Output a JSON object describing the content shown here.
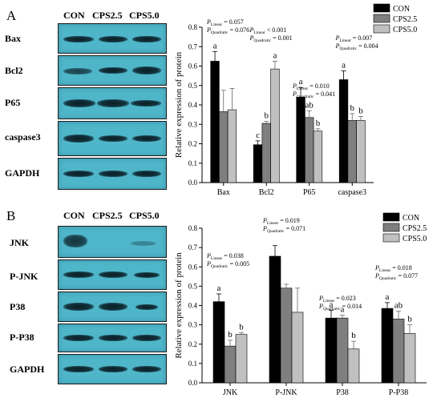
{
  "panels": [
    {
      "letter": "A",
      "blot": {
        "headers": [
          "CON",
          "CPS2.5",
          "CPS5.0"
        ],
        "labels": [
          "Bax",
          "Bcl2",
          "P65",
          "caspase3",
          "GAPDH"
        ]
      },
      "legend": [
        "CON",
        "CPS2.5",
        "CPS5.0"
      ],
      "stats": [
        {
          "pl": "P",
          "sl": "Linear",
          "vl": "= 0.057",
          "pq": "P",
          "sq": "Quadratic",
          "vq": "= 0.076"
        },
        {
          "pl": "P",
          "sl": "Linear",
          "vl": "< 0.001",
          "pq": "P",
          "sq": "Quadratic",
          "vq": "= 0.001"
        },
        {
          "pl": "P",
          "sl": "Linear",
          "vl": "= 0.010",
          "pq": "P",
          "sq": "Quadratic",
          "vq": "= 0.041"
        },
        {
          "pl": "P",
          "sl": "Linear",
          "vl": "= 0.007",
          "pq": "P",
          "sq": "Quadratic",
          "vq": "= 0.004"
        }
      ]
    },
    {
      "letter": "B",
      "blot": {
        "headers": [
          "CON",
          "CPS2.5",
          "CPS5.0"
        ],
        "labels": [
          "JNK",
          "P-JNK",
          "P38",
          "P-P38",
          "GAPDH"
        ]
      },
      "legend": [
        "CON",
        "CPS2.5",
        "CPS5.0"
      ],
      "stats": [
        {
          "pl": "P",
          "sl": "Linear",
          "vl": "= 0.038",
          "pq": "P",
          "sq": "Quadratic",
          "vq": "= 0.005"
        },
        {
          "pl": "P",
          "sl": "Linear",
          "vl": "= 0.019",
          "pq": "P",
          "sq": "Quadratic",
          "vq": "= 0.071"
        },
        {
          "pl": "P",
          "sl": "Linear",
          "vl": "= 0.023",
          "pq": "P",
          "sq": "Quadratic",
          "vq": "= 0.014"
        },
        {
          "pl": "P",
          "sl": "Linear",
          "vl": "= 0.018",
          "pq": "P",
          "sq": "Quadratic",
          "vq": "= 0.077"
        }
      ]
    }
  ],
  "colors": {
    "con": "#000000",
    "cps25": "#7f7f7f",
    "cps50": "#c0c0c0",
    "blot_bg": "#4fb6c9"
  },
  "chart_data": [
    {
      "type": "bar",
      "ylabel": "Relative expression of protein",
      "xlabel": "",
      "ylim": [
        0,
        0.8
      ],
      "yticks": [
        "0.0",
        "0.1",
        "0.2",
        "0.3",
        "0.4",
        "0.5",
        "0.6",
        "0.7",
        "0.8"
      ],
      "categories": [
        "Bax",
        "Bcl2",
        "P65",
        "caspase3"
      ],
      "grid": false,
      "legend_position": "top-right",
      "series": [
        {
          "name": "CON",
          "values": [
            0.625,
            0.195,
            0.44,
            0.53
          ],
          "errors": [
            0.05,
            0.02,
            0.05,
            0.045
          ],
          "letters": [
            "a",
            "c",
            "a",
            "a"
          ]
        },
        {
          "name": "CPS2.5",
          "values": [
            0.365,
            0.305,
            0.335,
            0.32
          ],
          "errors": [
            0.11,
            0.01,
            0.035,
            0.035
          ],
          "letters": [
            "",
            "b",
            "ab",
            "b"
          ]
        },
        {
          "name": "CPS5.0",
          "values": [
            0.375,
            0.585,
            0.265,
            0.32
          ],
          "errors": [
            0.11,
            0.04,
            0.012,
            0.02
          ],
          "letters": [
            "",
            "a",
            "b",
            "b"
          ]
        }
      ]
    },
    {
      "type": "bar",
      "ylabel": "Relative expression of protein",
      "xlabel": "",
      "ylim": [
        0,
        0.8
      ],
      "yticks": [
        "0.0",
        "0.1",
        "0.2",
        "0.3",
        "0.4",
        "0.5",
        "0.6",
        "0.7",
        "0.8"
      ],
      "categories": [
        "JNK",
        "P-JNK",
        "P38",
        "P-P38"
      ],
      "grid": false,
      "legend_position": "top-right",
      "series": [
        {
          "name": "CON",
          "values": [
            0.42,
            0.655,
            0.335,
            0.385
          ],
          "errors": [
            0.04,
            0.055,
            0.04,
            0.03
          ],
          "letters": [
            "a",
            "",
            "a",
            "a"
          ]
        },
        {
          "name": "CPS2.5",
          "values": [
            0.19,
            0.49,
            0.335,
            0.33
          ],
          "errors": [
            0.03,
            0.02,
            0.015,
            0.04
          ],
          "letters": [
            "b",
            "",
            "a",
            "ab"
          ]
        },
        {
          "name": "CPS5.0",
          "values": [
            0.25,
            0.365,
            0.175,
            0.255
          ],
          "errors": [
            0.01,
            0.125,
            0.04,
            0.045
          ],
          "letters": [
            "b",
            "",
            "b",
            "b"
          ]
        }
      ]
    }
  ]
}
